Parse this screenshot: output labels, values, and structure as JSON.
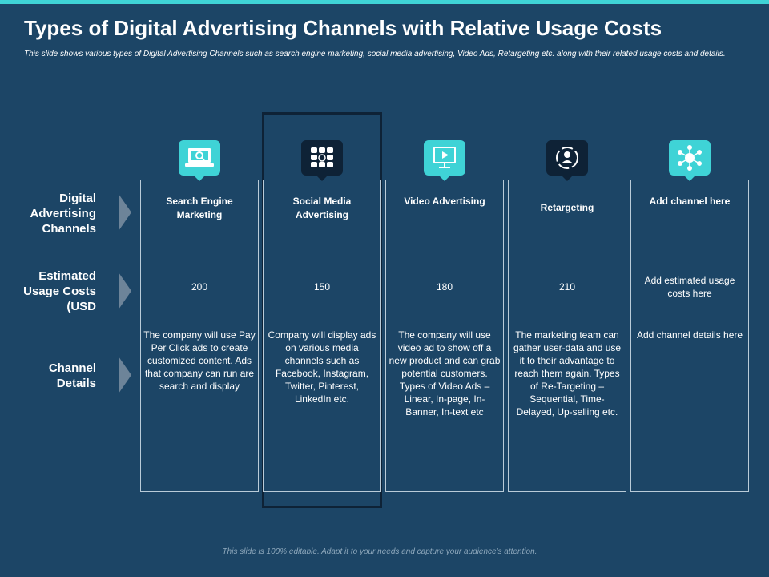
{
  "title": "Types of Digital Advertising Channels with Relative Usage Costs",
  "subtitle": "This slide shows various types of Digital Advertising Channels such as search engine marketing, social media advertising, Video Ads, Retargeting etc. along with their related usage costs and details.",
  "row_labels": {
    "channels": "Digital Advertising Channels",
    "costs": "Estimated Usage Costs (USD",
    "details": "Channel Details"
  },
  "columns": [
    {
      "icon": "laptop-search-icon",
      "name": "Search Engine Marketing",
      "cost": "200",
      "details": "The company will use Pay Per Click ads to create customized content. Ads that company can run are search and display"
    },
    {
      "icon": "social-media-icons-icon",
      "name": "Social Media Advertising",
      "cost": "150",
      "details": "Company will display ads on various media channels such as Facebook, Instagram, Twitter, Pinterest, LinkedIn etc."
    },
    {
      "icon": "video-monitor-icon",
      "name": "Video Advertising",
      "cost": "180",
      "details": "The company will use video ad to show off a new product and can grab potential customers. Types of Video Ads – Linear, In-page, In-Banner, In-text etc"
    },
    {
      "icon": "retargeting-user-icon",
      "name": "Retargeting",
      "cost": "210",
      "details": "The marketing team can gather user-data and use it to their advantage to reach them again. Types of Re-Targeting – Sequential, Time-Delayed, Up-selling etc."
    },
    {
      "icon": "network-hub-icon",
      "name": "Add channel here",
      "cost": "Add estimated usage costs here",
      "details": "Add channel details here"
    }
  ],
  "footer": "This slide is 100% editable. Adapt it to your needs and capture your audience's attention.",
  "colors": {
    "background": "#1c4566",
    "accent": "#3fd3d6",
    "dark_tile": "#0e2236",
    "column_border": "#b9cbd8"
  }
}
